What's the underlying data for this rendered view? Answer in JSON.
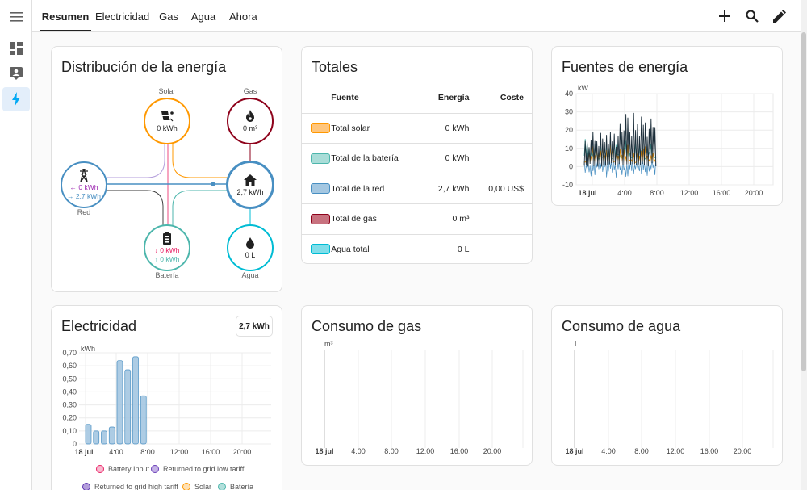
{
  "sidebar": {
    "items": [
      {
        "icon": "menu-icon"
      },
      {
        "icon": "dashboard-icon"
      },
      {
        "icon": "person-card-icon"
      },
      {
        "icon": "lightning-icon",
        "active": true
      }
    ]
  },
  "header": {
    "tabs": [
      {
        "label": "Resumen",
        "active": true
      },
      {
        "label": "Electricidad"
      },
      {
        "label": "Gas"
      },
      {
        "label": "Agua"
      },
      {
        "label": "Ahora"
      }
    ],
    "actions": [
      "plus-icon",
      "search-icon",
      "pencil-icon"
    ]
  },
  "distribution": {
    "title": "Distribución de la energía",
    "solar": {
      "label": "Solar",
      "value": "0 kWh"
    },
    "gas": {
      "label": "Gas",
      "value": "0 m³"
    },
    "grid": {
      "label": "Red",
      "in": "← 0 kWh",
      "out": "→ 2,7 kWh"
    },
    "home": {
      "value": "2,7 kWh"
    },
    "battery": {
      "label": "Batería",
      "in": "↓ 0 kWh",
      "out": "↑ 0 kWh"
    },
    "water": {
      "label": "Agua",
      "value": "0 L"
    },
    "colors": {
      "solar": "#ff9800",
      "gas": "#8e021b",
      "grid": "#488fc2",
      "battery": "#4db6ac",
      "water": "#00bcd4",
      "home": "#488fc2"
    }
  },
  "totals": {
    "title": "Totales",
    "columns": [
      "Fuente",
      "Energía",
      "Coste"
    ],
    "rows": [
      {
        "name": "Total solar",
        "energy": "0 kWh",
        "cost": "",
        "color": "#ffc67d",
        "border": "#ff9800"
      },
      {
        "name": "Total de la batería",
        "energy": "0 kWh",
        "cost": "",
        "color": "#a9ddd8",
        "border": "#4db6ac"
      },
      {
        "name": "Total de la red",
        "energy": "2,7 kWh",
        "cost": "0,00 US$",
        "color": "#a4c7e1",
        "border": "#488fc2"
      },
      {
        "name": "Total de gas",
        "energy": "0 m³",
        "cost": "",
        "color": "#c8727f",
        "border": "#8e021b"
      },
      {
        "name": "Agua total",
        "energy": "0 L",
        "cost": "",
        "color": "#80deea",
        "border": "#00bcd4"
      }
    ]
  },
  "sources": {
    "title": "Fuentes de energía"
  },
  "electricity": {
    "title": "Electricidad",
    "badge": "2,7 kWh"
  },
  "gas_usage": {
    "title": "Consumo de gas"
  },
  "water_usage": {
    "title": "Consumo de agua"
  },
  "chart_data": [
    {
      "id": "fuentes",
      "type": "line",
      "ylabel": "kW",
      "ylim": [
        -10,
        40
      ],
      "yticks": [
        "40",
        "30",
        "20",
        "10",
        "0",
        "-10"
      ],
      "xticks": [
        "18 jul",
        "4:00",
        "8:00",
        "12:00",
        "16:00",
        "20:00"
      ],
      "series": [
        {
          "color": "#1c2e3a"
        },
        {
          "color": "#ff9800"
        },
        {
          "color": "#4db6ac"
        },
        {
          "color": "#488fc2"
        }
      ]
    },
    {
      "id": "electricidad",
      "type": "bar",
      "ylabel": "kWh",
      "ylim": [
        0,
        0.7
      ],
      "yticks": [
        "0,70",
        "0,60",
        "0,50",
        "0,40",
        "0,30",
        "0,20",
        "0,10",
        "0"
      ],
      "xticks": [
        "18 jul",
        "4:00",
        "8:00",
        "12:00",
        "16:00",
        "20:00"
      ],
      "x": [
        "00:00",
        "01:00",
        "02:00",
        "03:00",
        "04:00",
        "05:00",
        "06:00",
        "07:00"
      ],
      "values": [
        0.15,
        0.1,
        0.1,
        0.13,
        0.64,
        0.57,
        0.67,
        0.37
      ],
      "color": "#a4c7e1",
      "legend": [
        {
          "label": "Battery Input",
          "color": "#f8bbd0",
          "border": "#e91e63"
        },
        {
          "label": "Returned to grid low tariff",
          "color": "#c5b3e6",
          "border": "#673ab7"
        },
        {
          "label": "Returned to grid high tariff",
          "color": "#b39ddb",
          "border": "#5e35b1"
        },
        {
          "label": "Solar",
          "color": "#ffe0b2",
          "border": "#ff9800"
        },
        {
          "label": "Batería",
          "color": "#b2dfdb",
          "border": "#4db6ac"
        }
      ]
    },
    {
      "id": "gas",
      "type": "bar",
      "ylabel": "m³",
      "xticks": [
        "18 jul",
        "4:00",
        "8:00",
        "12:00",
        "16:00",
        "20:00"
      ],
      "values": []
    },
    {
      "id": "agua",
      "type": "bar",
      "ylabel": "L",
      "xticks": [
        "18 jul",
        "4:00",
        "8:00",
        "12:00",
        "16:00",
        "20:00"
      ],
      "values": []
    }
  ]
}
